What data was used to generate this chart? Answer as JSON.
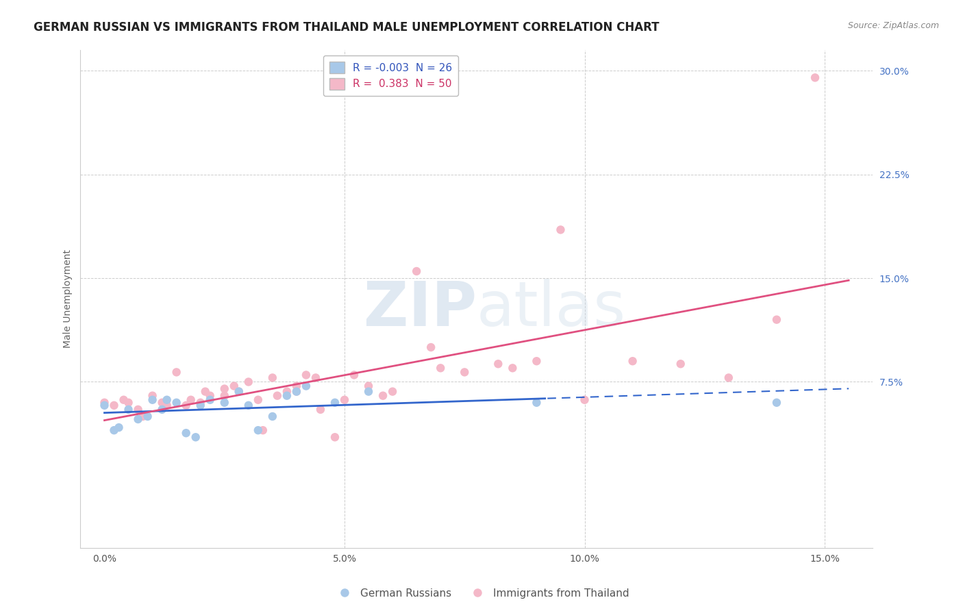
{
  "title": "GERMAN RUSSIAN VS IMMIGRANTS FROM THAILAND MALE UNEMPLOYMENT CORRELATION CHART",
  "source": "Source: ZipAtlas.com",
  "ylabel": "Male Unemployment",
  "x_ticks": [
    0.0,
    0.05,
    0.1,
    0.15
  ],
  "x_tick_labels": [
    "0.0%",
    "5.0%",
    "10.0%",
    "15.0%"
  ],
  "y_ticks": [
    0.075,
    0.15,
    0.225,
    0.3
  ],
  "y_tick_labels": [
    "7.5%",
    "15.0%",
    "22.5%",
    "30.0%"
  ],
  "xlim": [
    -0.005,
    0.16
  ],
  "ylim": [
    -0.045,
    0.315
  ],
  "blue_color": "#a8c8e8",
  "pink_color": "#f4b8c8",
  "blue_line_color": "#3366cc",
  "pink_line_color": "#e05080",
  "R_blue": -0.003,
  "N_blue": 26,
  "R_pink": 0.383,
  "N_pink": 50,
  "blue_scatter_x": [
    0.0,
    0.002,
    0.003,
    0.005,
    0.007,
    0.009,
    0.01,
    0.012,
    0.013,
    0.015,
    0.017,
    0.019,
    0.02,
    0.022,
    0.025,
    0.028,
    0.03,
    0.032,
    0.035,
    0.038,
    0.04,
    0.042,
    0.048,
    0.055,
    0.09,
    0.14
  ],
  "blue_scatter_y": [
    0.058,
    0.04,
    0.042,
    0.055,
    0.048,
    0.05,
    0.062,
    0.055,
    0.062,
    0.06,
    0.038,
    0.035,
    0.058,
    0.062,
    0.06,
    0.068,
    0.058,
    0.04,
    0.05,
    0.065,
    0.068,
    0.072,
    0.06,
    0.068,
    0.06,
    0.06
  ],
  "pink_scatter_x": [
    0.0,
    0.002,
    0.004,
    0.005,
    0.007,
    0.008,
    0.01,
    0.012,
    0.013,
    0.015,
    0.017,
    0.018,
    0.02,
    0.021,
    0.022,
    0.025,
    0.025,
    0.027,
    0.028,
    0.03,
    0.032,
    0.033,
    0.035,
    0.036,
    0.038,
    0.04,
    0.04,
    0.042,
    0.044,
    0.045,
    0.048,
    0.05,
    0.052,
    0.055,
    0.058,
    0.06,
    0.065,
    0.068,
    0.07,
    0.075,
    0.082,
    0.085,
    0.09,
    0.095,
    0.1,
    0.11,
    0.12,
    0.13,
    0.14,
    0.148
  ],
  "pink_scatter_y": [
    0.06,
    0.058,
    0.062,
    0.06,
    0.055,
    0.05,
    0.065,
    0.06,
    0.058,
    0.082,
    0.058,
    0.062,
    0.06,
    0.068,
    0.065,
    0.065,
    0.07,
    0.072,
    0.068,
    0.075,
    0.062,
    0.04,
    0.078,
    0.065,
    0.068,
    0.068,
    0.072,
    0.08,
    0.078,
    0.055,
    0.035,
    0.062,
    0.08,
    0.072,
    0.065,
    0.068,
    0.155,
    0.1,
    0.085,
    0.082,
    0.088,
    0.085,
    0.09,
    0.185,
    0.062,
    0.09,
    0.088,
    0.078,
    0.12,
    0.295
  ],
  "grid_color": "#cccccc",
  "title_fontsize": 12,
  "axis_fontsize": 10,
  "tick_fontsize": 10
}
